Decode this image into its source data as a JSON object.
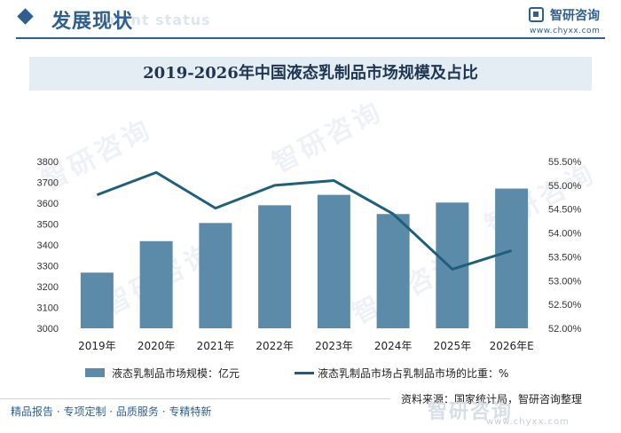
{
  "header": {
    "section_title": "发展现状",
    "section_subtitle": "ment status",
    "logo_name": "智研咨询",
    "logo_url": "www.chyxx.com"
  },
  "watermark": {
    "text": "智研咨询"
  },
  "chart_data": {
    "type": "bar",
    "title": "2019-2026年中国液态乳制品市场规模及占比",
    "categories": [
      "2019年",
      "2020年",
      "2021年",
      "2022年",
      "2023年",
      "2024年",
      "2025年",
      "2026年E"
    ],
    "series": [
      {
        "name": "液态乳制品市场规模：亿元",
        "type": "bar",
        "axis": "left",
        "values": [
          3267,
          3418,
          3505,
          3590,
          3640,
          3548,
          3603,
          3670
        ]
      },
      {
        "name": "液态乳制品市场占乳制品市场的比重：%",
        "type": "line",
        "axis": "right",
        "values": [
          54.8,
          55.27,
          54.52,
          55.0,
          55.1,
          54.4,
          53.24,
          53.63
        ]
      }
    ],
    "y_left": {
      "min": 3000,
      "max": 3800,
      "step": 100,
      "ticks": [
        "3000",
        "3100",
        "3200",
        "3300",
        "3400",
        "3500",
        "3600",
        "3700",
        "3800"
      ]
    },
    "y_right": {
      "min": 52.0,
      "max": 55.5,
      "step": 0.5,
      "ticks": [
        "52.00%",
        "52.50%",
        "53.00%",
        "53.50%",
        "54.00%",
        "54.50%",
        "55.00%",
        "55.50%"
      ]
    },
    "grid": false,
    "legend_position": "bottom",
    "colors": {
      "bar": "#5b8ba8",
      "line": "#1f5f7a"
    }
  },
  "source": "资料来源：国家统计局，智研咨询整理",
  "footer": {
    "tagline": "精品报告 · 专项定制 · 品质服务 · 专精特新",
    "logo_name": "智研咨询",
    "logo_url": "www.chyxx.com"
  }
}
